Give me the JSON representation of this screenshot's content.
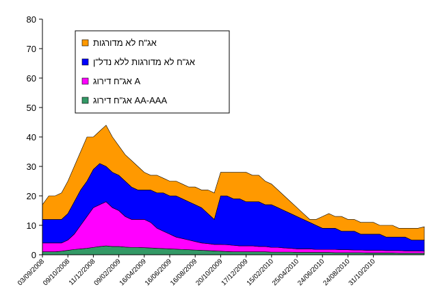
{
  "chart_data": {
    "type": "stacked_area",
    "categories": [
      "03/09/2008",
      null,
      null,
      null,
      "09/10/2008",
      null,
      null,
      null,
      "11/12/2008",
      null,
      null,
      null,
      "09/02/2009",
      null,
      null,
      null,
      "16/04/2009",
      null,
      null,
      null,
      "16/06/2009",
      null,
      null,
      null,
      "16/08/2009",
      null,
      null,
      null,
      "20/10/2009",
      null,
      null,
      null,
      "17/12/2009",
      null,
      null,
      null,
      "15/02/2010",
      null,
      null,
      null,
      "25/04/2010",
      null,
      null,
      null,
      "24/06/2010",
      null,
      null,
      null,
      "24/08/2010",
      null,
      null,
      null,
      "31/10/2010",
      null,
      null,
      null,
      null,
      null,
      null,
      null,
      null
    ],
    "series": [
      {
        "name": "אג\"ח לא מדורגות",
        "color": "#ff9900",
        "values": [
          5,
          8,
          8,
          9,
          11,
          12,
          13,
          15,
          11,
          11,
          14,
          12,
          10,
          9,
          9,
          8,
          6,
          5,
          6,
          5,
          5,
          5,
          5,
          5,
          6,
          6,
          8,
          9,
          8,
          8,
          9,
          9,
          10,
          9,
          9,
          8,
          7,
          6,
          5,
          4,
          3,
          2,
          1,
          2,
          4,
          5,
          4,
          5,
          4,
          4,
          4,
          4,
          4,
          3,
          4,
          4,
          3,
          3,
          4,
          4,
          4.5
        ]
      },
      {
        "name": "אג\"ח לא מדורגות ללא נדל\"ן",
        "color": "#0000ff",
        "values": [
          8,
          8,
          8,
          8,
          9,
          11,
          12,
          12,
          13,
          14,
          12,
          12,
          12,
          12,
          11,
          10,
          10,
          11,
          12,
          13,
          13,
          14,
          13.5,
          13,
          12.5,
          12,
          10.2,
          8.5,
          16.5,
          16.6,
          15.8,
          16,
          15,
          15,
          15.2,
          14.2,
          14.5,
          13.5,
          12.7,
          11.8,
          11,
          10,
          9,
          8.2,
          7.2,
          7.2,
          7.2,
          6.3,
          6.3,
          6.4,
          5.4,
          5.5,
          5.5,
          5.5,
          4.6,
          4.6,
          4.6,
          4.7,
          3.7,
          3.7,
          3.8
        ]
      },
      {
        "name": "אג\"ח דירוג A",
        "color": "#ff00ff",
        "values": [
          3,
          3,
          3,
          2.8,
          3.5,
          5.2,
          8,
          10.8,
          13.5,
          14.2,
          15,
          13.2,
          12.2,
          10.4,
          9.5,
          9.5,
          9.6,
          8.7,
          6.8,
          5.9,
          5,
          4.1,
          3.7,
          3.3,
          2.9,
          2.5,
          2.4,
          2.2,
          2.3,
          2.3,
          2.2,
          2,
          2,
          2,
          1.8,
          1.8,
          1.6,
          1.6,
          1.4,
          1.3,
          1.2,
          1.2,
          1.2,
          1,
          1,
          1,
          1.1,
          1,
          1,
          0.9,
          0.9,
          0.9,
          0.9,
          0.9,
          0.8,
          0.8,
          0.9,
          0.8,
          0.8,
          0.8,
          0.7
        ]
      },
      {
        "name": "אג\"ח דירוג AA-AAA",
        "color": "#339966",
        "values": [
          1,
          1,
          1,
          1.2,
          1.5,
          1.8,
          2,
          2.2,
          2.5,
          2.8,
          3,
          2.8,
          2.8,
          2.6,
          2.5,
          2.5,
          2.4,
          2.3,
          2.2,
          2.1,
          2,
          1.9,
          1.8,
          1.7,
          1.6,
          1.5,
          1.4,
          1.3,
          1.2,
          1.1,
          1,
          1,
          1,
          1,
          1,
          1,
          0.9,
          0.9,
          0.9,
          0.9,
          0.8,
          0.8,
          0.8,
          0.8,
          0.8,
          0.8,
          0.7,
          0.7,
          0.7,
          0.7,
          0.7,
          0.6,
          0.6,
          0.6,
          0.6,
          0.6,
          0.5,
          0.5,
          0.5,
          0.5,
          0.5
        ]
      }
    ],
    "stack_order": "bottom_up_from_last",
    "ylim": [
      0,
      80
    ],
    "yticks": [
      0,
      10,
      20,
      30,
      40,
      50,
      60,
      70,
      80
    ],
    "grid": false,
    "legend_position": "upper left"
  }
}
